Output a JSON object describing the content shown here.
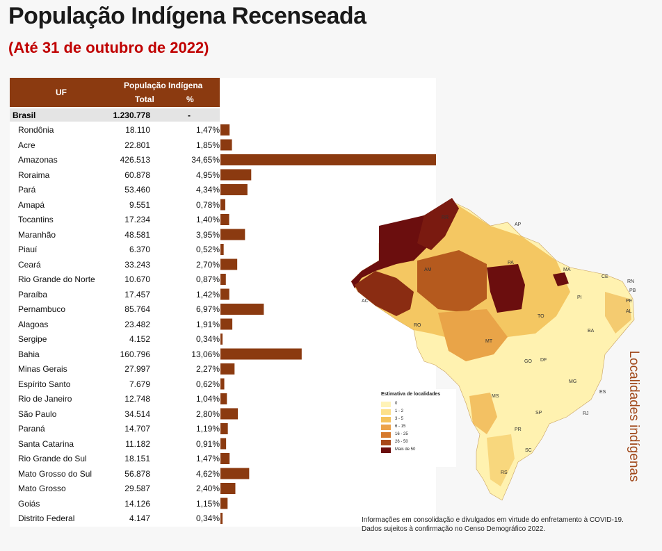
{
  "title": "População Indígena Recenseada",
  "subtitle": "(Até 31 de outubro de 2022)",
  "table": {
    "col_uf": "UF",
    "col_group": "População Indígena",
    "col_total": "Total",
    "col_pct": "%",
    "brasil": {
      "uf": "Brasil",
      "total": "1.230.778",
      "pct": "-"
    }
  },
  "chart_data": {
    "type": "bar",
    "orientation": "horizontal",
    "categories": [
      "Rondônia",
      "Acre",
      "Amazonas",
      "Roraima",
      "Pará",
      "Amapá",
      "Tocantins",
      "Maranhão",
      "Piauí",
      "Ceará",
      "Rio Grande do Norte",
      "Paraíba",
      "Pernambuco",
      "Alagoas",
      "Sergipe",
      "Bahia",
      "Minas Gerais",
      "Espírito Santo",
      "Rio de Janeiro",
      "São Paulo",
      "Paraná",
      "Santa Catarina",
      "Rio Grande do Sul",
      "Mato Grosso do Sul",
      "Mato Grosso",
      "Goiás",
      "Distrito Federal"
    ],
    "totals": [
      "18.110",
      "22.801",
      "426.513",
      "60.878",
      "53.460",
      "9.551",
      "17.234",
      "48.581",
      "6.370",
      "33.243",
      "10.670",
      "17.457",
      "85.764",
      "23.482",
      "4.152",
      "160.796",
      "27.997",
      "7.679",
      "12.748",
      "34.514",
      "14.707",
      "11.182",
      "18.151",
      "56.878",
      "29.587",
      "14.126",
      "4.147"
    ],
    "pct_labels": [
      "1,47%",
      "1,85%",
      "34,65%",
      "4,95%",
      "4,34%",
      "0,78%",
      "1,40%",
      "3,95%",
      "0,52%",
      "2,70%",
      "0,87%",
      "1,42%",
      "6,97%",
      "1,91%",
      "0,34%",
      "13,06%",
      "2,27%",
      "0,62%",
      "1,04%",
      "2,80%",
      "1,19%",
      "0,91%",
      "1,47%",
      "4,62%",
      "2,40%",
      "1,15%",
      "0,34%"
    ],
    "values": [
      1.47,
      1.85,
      34.65,
      4.95,
      4.34,
      0.78,
      1.4,
      3.95,
      0.52,
      2.7,
      0.87,
      1.42,
      6.97,
      1.91,
      0.34,
      13.06,
      2.27,
      0.62,
      1.04,
      2.8,
      1.19,
      0.91,
      1.47,
      4.62,
      2.4,
      1.15,
      0.34
    ],
    "bar_color": "#8b3a10",
    "xlim": [
      0,
      34.65
    ]
  },
  "map": {
    "state_labels": [
      "RR",
      "AP",
      "AM",
      "PA",
      "MA",
      "CE",
      "RN",
      "PB",
      "PI",
      "PE",
      "AL",
      "AC",
      "RO",
      "TO",
      "BA",
      "MT",
      "GO",
      "DF",
      "MG",
      "MS",
      "ES",
      "SP",
      "RJ",
      "PR",
      "SC",
      "RS"
    ]
  },
  "legend": {
    "title": "Estimativa de localidades",
    "items": [
      {
        "label": "0",
        "color": "#fff3b8"
      },
      {
        "label": "1 - 2",
        "color": "#fde08a"
      },
      {
        "label": "3 - 5",
        "color": "#f5c25c"
      },
      {
        "label": "6 - 15",
        "color": "#eca24a"
      },
      {
        "label": "16 - 25",
        "color": "#d67a2e"
      },
      {
        "label": "26 - 50",
        "color": "#a8481a"
      },
      {
        "label": "Mais de 50",
        "color": "#6b0e0e"
      }
    ]
  },
  "side_label": "Localidades indígenas",
  "note_line1": "Informações em consolidação e divulgados em virtude do enfretamento à COVID-19.",
  "note_line2": "Dados sujeitos à confirmação no Censo Demográfico 2022."
}
